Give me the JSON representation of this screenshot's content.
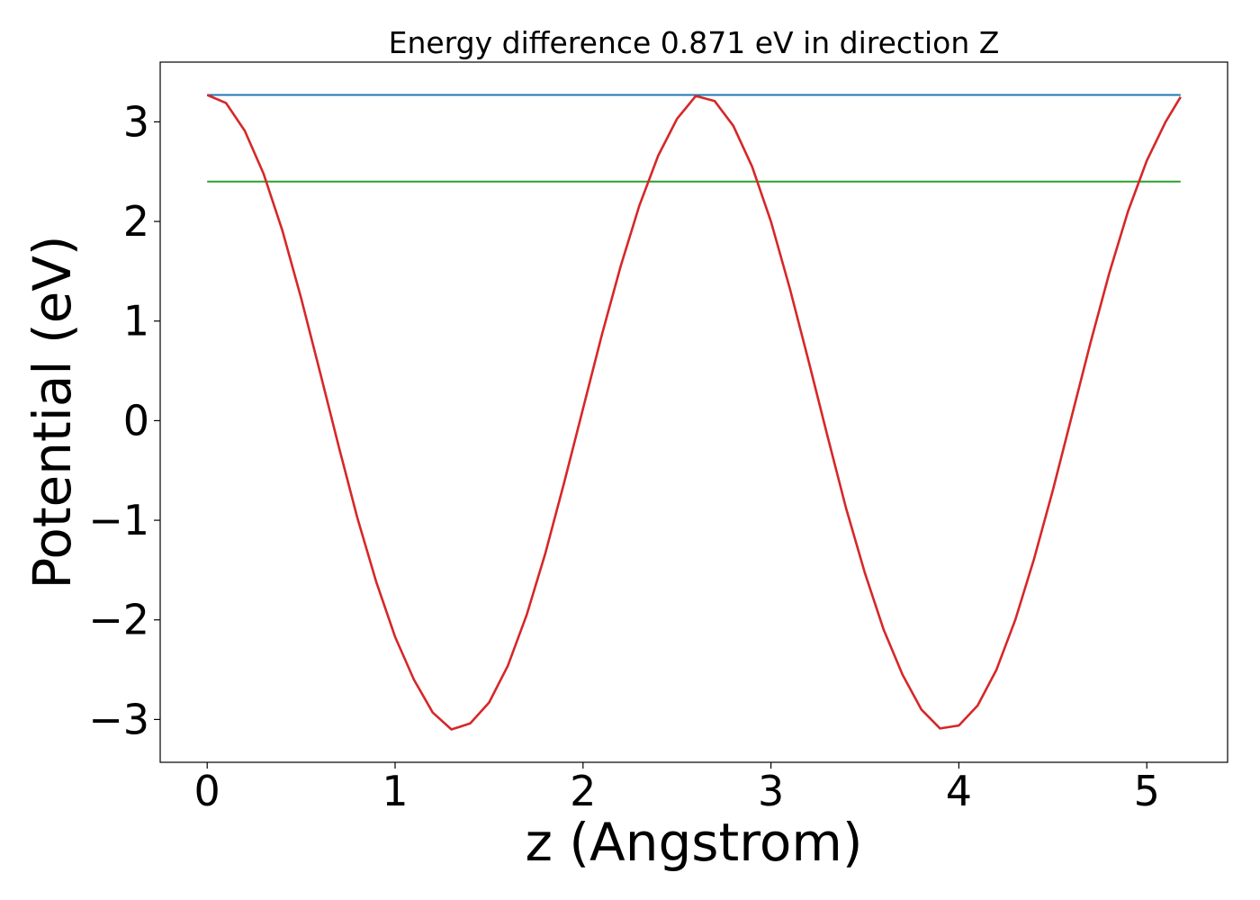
{
  "chart_data": {
    "type": "line",
    "title": "Energy difference 0.871 eV in direction Z",
    "xlabel": "z (Angstrom)",
    "ylabel": "Potential (eV)",
    "xlim": [
      -0.25,
      5.43
    ],
    "ylim": [
      -3.43,
      3.6
    ],
    "x_ticks": [
      0,
      1,
      2,
      3,
      4,
      5
    ],
    "x_tick_labels": [
      "0",
      "1",
      "2",
      "3",
      "4",
      "5"
    ],
    "y_ticks": [
      -3,
      -2,
      -1,
      0,
      1,
      2,
      3
    ],
    "y_tick_labels": [
      "−3",
      "−2",
      "−1",
      "0",
      "1",
      "2",
      "3"
    ],
    "grid": false,
    "series": [
      {
        "color": "#1f77b4",
        "x": [
          0,
          5.18
        ],
        "y": [
          3.27,
          3.27
        ]
      },
      {
        "color": "#2ca02c",
        "x": [
          0,
          5.18
        ],
        "y": [
          2.4,
          2.4
        ]
      },
      {
        "color": "#d62728",
        "x": [
          0,
          0.1,
          0.2,
          0.3,
          0.4,
          0.5,
          0.6,
          0.7,
          0.8,
          0.9,
          1.0,
          1.1,
          1.2,
          1.3,
          1.4,
          1.5,
          1.6,
          1.7,
          1.8,
          1.9,
          2.0,
          2.1,
          2.2,
          2.3,
          2.4,
          2.5,
          2.6,
          2.7,
          2.8,
          2.9,
          3.0,
          3.1,
          3.2,
          3.3,
          3.4,
          3.5,
          3.6,
          3.7,
          3.8,
          3.9,
          4.0,
          4.1,
          4.2,
          4.3,
          4.4,
          4.5,
          4.6,
          4.7,
          4.8,
          4.9,
          5.0,
          5.1,
          5.18
        ],
        "y": [
          3.27,
          3.19,
          2.91,
          2.48,
          1.91,
          1.23,
          0.49,
          -0.26,
          -0.98,
          -1.62,
          -2.17,
          -2.6,
          -2.93,
          -3.1,
          -3.04,
          -2.83,
          -2.46,
          -1.95,
          -1.33,
          -0.62,
          0.12,
          0.86,
          1.55,
          2.16,
          2.66,
          3.03,
          3.26,
          3.21,
          2.96,
          2.55,
          2.0,
          1.33,
          0.6,
          -0.15,
          -0.88,
          -1.53,
          -2.1,
          -2.55,
          -2.9,
          -3.09,
          -3.06,
          -2.86,
          -2.5,
          -2.0,
          -1.39,
          -0.7,
          0.04,
          0.78,
          1.48,
          2.1,
          2.61,
          3.0,
          3.25
        ]
      }
    ]
  }
}
